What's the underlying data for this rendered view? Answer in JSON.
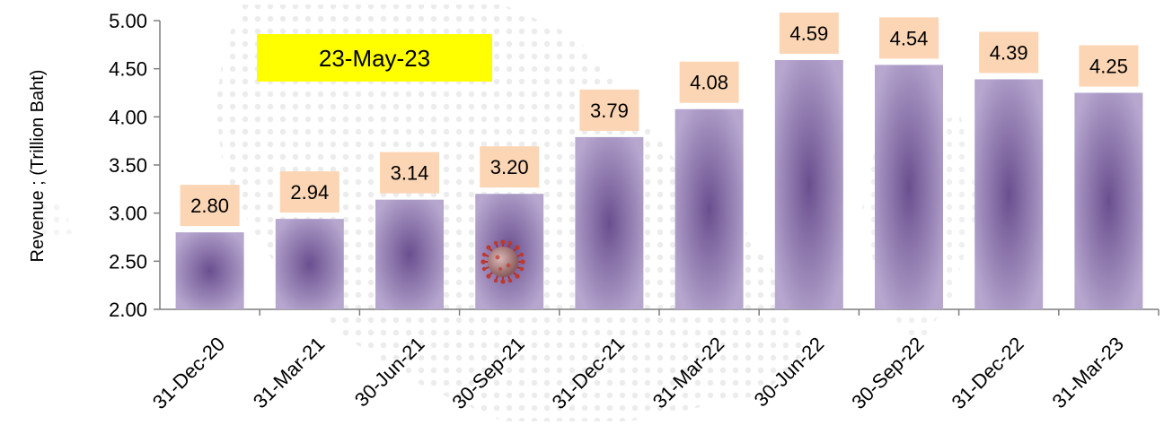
{
  "date_badge": {
    "text": "23-May-23",
    "color": "#ffff00"
  },
  "colors": {
    "bar_center": "#6a4f8f",
    "bar_edge": "#b7a7cf",
    "label_box": "#fcd5b4",
    "dot_pattern": "#ececec",
    "virus_icon": "#b03030"
  },
  "icons": [
    "virus-icon"
  ],
  "chart_data": {
    "type": "bar",
    "categories": [
      "31-Dec-20",
      "31-Mar-21",
      "30-Jun-21",
      "30-Sep-21",
      "31-Dec-21",
      "31-Mar-22",
      "30-Jun-22",
      "30-Sep-22",
      "31-Dec-22",
      "31-Mar-23"
    ],
    "values": [
      2.8,
      2.94,
      3.14,
      3.2,
      3.79,
      4.08,
      4.59,
      4.54,
      4.39,
      4.25
    ],
    "data_labels": [
      "2.80",
      "2.94",
      "3.14",
      "3.20",
      "3.79",
      "4.08",
      "4.59",
      "4.54",
      "4.39",
      "4.25"
    ],
    "title": "",
    "xlabel": "",
    "ylabel": "Revenue ;  (Trillion Baht)",
    "ylim": [
      2.0,
      5.0
    ],
    "y_ticks": [
      "2.00",
      "2.50",
      "3.00",
      "3.50",
      "4.00",
      "4.50",
      "5.00"
    ],
    "grid": false,
    "legend": "none"
  }
}
